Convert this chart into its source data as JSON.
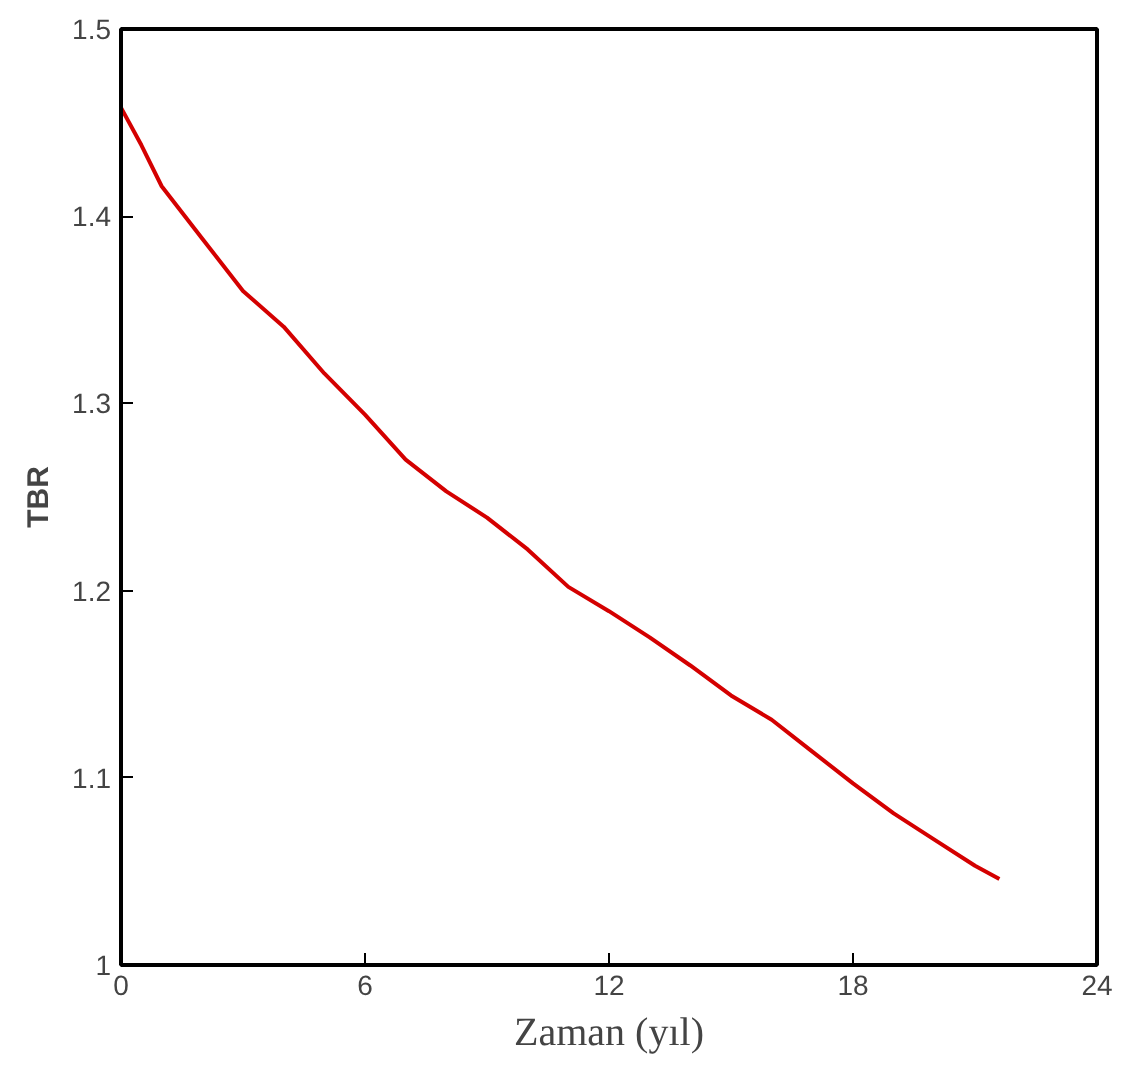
{
  "chart_data": {
    "type": "line",
    "xlabel": "Zaman (yıl)",
    "ylabel": "TBR",
    "xlim": [
      0,
      24
    ],
    "ylim": [
      1,
      1.5
    ],
    "xticks": [
      0,
      6,
      12,
      18,
      24
    ],
    "yticks": [
      1,
      1.1,
      1.2,
      1.3,
      1.4,
      1.5
    ],
    "grid": false,
    "x": [
      0,
      0.5,
      1,
      2,
      3,
      4,
      5,
      6,
      7,
      8,
      9,
      10,
      11,
      12,
      13,
      14,
      15,
      16,
      17,
      18,
      19,
      20,
      21,
      21.6
    ],
    "series": [
      {
        "color": "#d40000",
        "values": [
          1.458,
          1.438,
          1.416,
          1.388,
          1.36,
          1.341,
          1.316,
          1.294,
          1.27,
          1.253,
          1.239,
          1.222,
          1.202,
          1.189,
          1.175,
          1.16,
          1.144,
          1.131,
          1.114,
          1.097,
          1.081,
          1.067,
          1.053,
          1.046
        ]
      }
    ]
  }
}
